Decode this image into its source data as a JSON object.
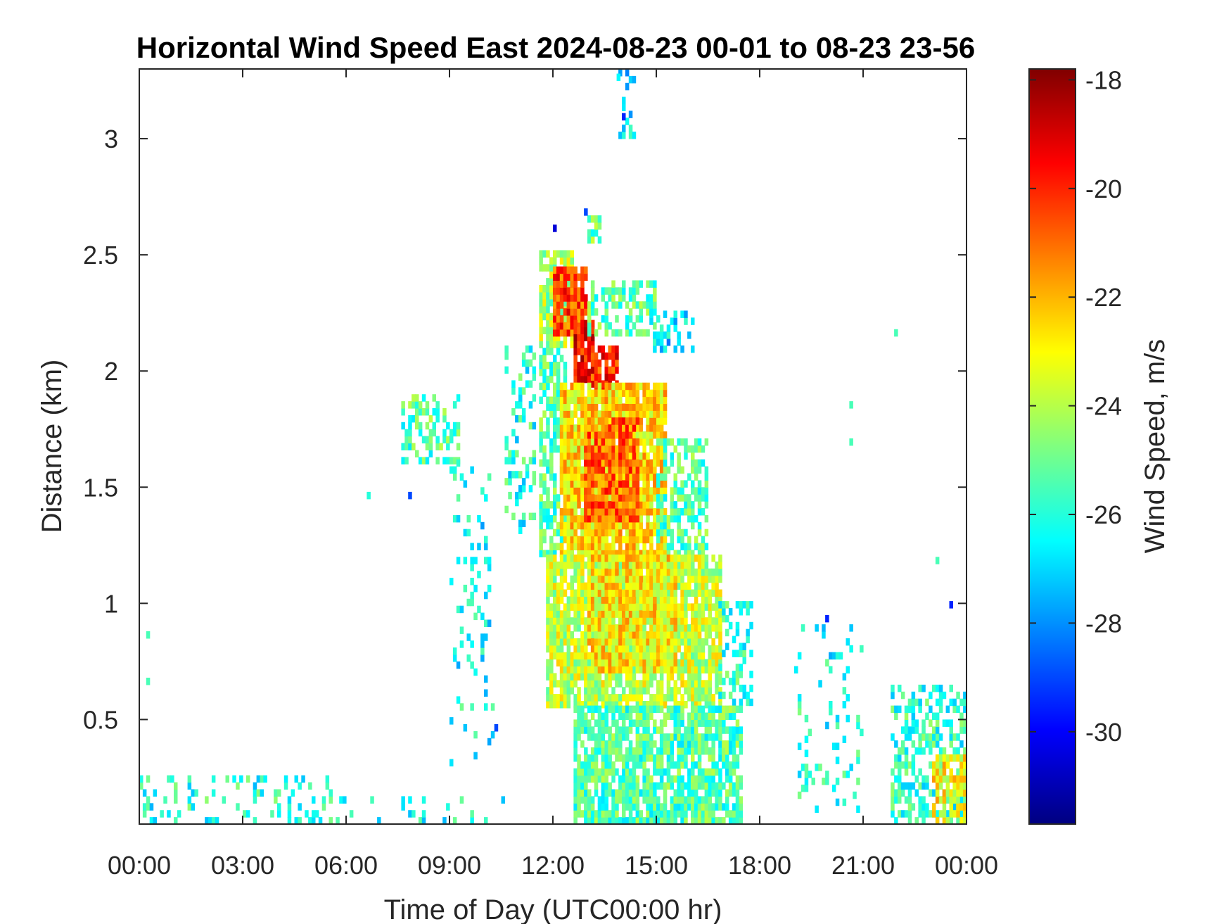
{
  "chart_data": {
    "type": "heatmap",
    "title": "Horizontal Wind Speed East 2024-08-23 00-01 to 08-23 23-56",
    "xlabel": "Time of Day (UTC00:00 hr)",
    "ylabel": "Distance (km)",
    "xlim": [
      0,
      24
    ],
    "ylim": [
      0.05,
      3.3
    ],
    "x_ticks": [
      {
        "value": 0,
        "label": "00:00"
      },
      {
        "value": 3,
        "label": "03:00"
      },
      {
        "value": 6,
        "label": "06:00"
      },
      {
        "value": 9,
        "label": "09:00"
      },
      {
        "value": 12,
        "label": "12:00"
      },
      {
        "value": 15,
        "label": "15:00"
      },
      {
        "value": 18,
        "label": "18:00"
      },
      {
        "value": 21,
        "label": "21:00"
      },
      {
        "value": 24,
        "label": "00:00"
      }
    ],
    "y_ticks": [
      {
        "value": 0.5,
        "label": "0.5"
      },
      {
        "value": 1,
        "label": "1"
      },
      {
        "value": 1.5,
        "label": "1.5"
      },
      {
        "value": 2,
        "label": "2"
      },
      {
        "value": 2.5,
        "label": "2.5"
      },
      {
        "value": 3,
        "label": "3"
      }
    ],
    "colorbar": {
      "label": "Wind Speed, m/s",
      "range": [
        -31.7,
        -17.8
      ],
      "colormap": "jet",
      "ticks": [
        {
          "value": -18,
          "label": "-18"
        },
        {
          "value": -20,
          "label": "-20"
        },
        {
          "value": -22,
          "label": "-22"
        },
        {
          "value": -24,
          "label": "-24"
        },
        {
          "value": -26,
          "label": "-26"
        },
        {
          "value": -28,
          "label": "-28"
        },
        {
          "value": -30,
          "label": "-30"
        }
      ]
    },
    "grid": false,
    "cell_size": {
      "time_hr": 0.1,
      "distance_km": 0.03
    },
    "regions": [
      {
        "t": [
          11.6,
          12.5
        ],
        "z": [
          2.1,
          2.5
        ],
        "v": -24.2,
        "density": 0.8
      },
      {
        "t": [
          12.0,
          12.9
        ],
        "z": [
          2.15,
          2.42
        ],
        "v": -20.5,
        "density": 0.9
      },
      {
        "t": [
          12.6,
          13.1
        ],
        "z": [
          1.95,
          2.2
        ],
        "v": -19.5,
        "density": 0.9
      },
      {
        "t": [
          13.1,
          13.8
        ],
        "z": [
          1.9,
          2.1
        ],
        "v": -20.0,
        "density": 0.9
      },
      {
        "t": [
          13.0,
          15.0
        ],
        "z": [
          2.15,
          2.38
        ],
        "v": -25.2,
        "density": 0.45
      },
      {
        "t": [
          14.8,
          16.0
        ],
        "z": [
          2.08,
          2.25
        ],
        "v": -27.0,
        "density": 0.45
      },
      {
        "t": [
          13.0,
          13.3
        ],
        "z": [
          2.55,
          2.65
        ],
        "v": -25.0,
        "density": 0.7
      },
      {
        "t": [
          11.6,
          12.3
        ],
        "z": [
          1.2,
          2.1
        ],
        "v": -25.3,
        "density": 0.65
      },
      {
        "t": [
          12.2,
          15.2
        ],
        "z": [
          1.2,
          1.95
        ],
        "v": -22.6,
        "density": 0.9
      },
      {
        "t": [
          12.9,
          14.4
        ],
        "z": [
          1.35,
          1.8
        ],
        "v": -20.9,
        "density": 0.9
      },
      {
        "t": [
          15.0,
          16.5
        ],
        "z": [
          1.2,
          1.7
        ],
        "v": -25.4,
        "density": 0.55
      },
      {
        "t": [
          11.8,
          16.8
        ],
        "z": [
          0.55,
          1.2
        ],
        "v": -23.8,
        "density": 0.85
      },
      {
        "t": [
          13.0,
          15.5
        ],
        "z": [
          0.7,
          1.2
        ],
        "v": -22.8,
        "density": 0.85
      },
      {
        "t": [
          16.8,
          17.8
        ],
        "z": [
          0.5,
          1.0
        ],
        "v": -25.8,
        "density": 0.35
      },
      {
        "t": [
          12.6,
          17.5
        ],
        "z": [
          0.05,
          0.55
        ],
        "v": -25.4,
        "density": 0.8
      },
      {
        "t": [
          7.6,
          9.2
        ],
        "z": [
          1.6,
          1.9
        ],
        "v": -25.4,
        "density": 0.4
      },
      {
        "t": [
          9.0,
          10.2
        ],
        "z": [
          0.3,
          1.6
        ],
        "v": -26.4,
        "density": 0.12
      },
      {
        "t": [
          10.6,
          11.4
        ],
        "z": [
          1.3,
          2.1
        ],
        "v": -26.0,
        "density": 0.3
      },
      {
        "t": [
          0.0,
          5.5
        ],
        "z": [
          0.05,
          0.25
        ],
        "v": -26.0,
        "density": 0.22
      },
      {
        "t": [
          5.5,
          10.5
        ],
        "z": [
          0.05,
          0.15
        ],
        "v": -26.0,
        "density": 0.12
      },
      {
        "t": [
          19.0,
          21.0
        ],
        "z": [
          0.1,
          0.9
        ],
        "v": -26.2,
        "density": 0.14
      },
      {
        "t": [
          21.8,
          24.0
        ],
        "z": [
          0.05,
          0.65
        ],
        "v": -25.8,
        "density": 0.5
      },
      {
        "t": [
          23.0,
          24.0
        ],
        "z": [
          0.05,
          0.35
        ],
        "v": -23.0,
        "density": 0.7
      },
      {
        "t": [
          13.9,
          14.3
        ],
        "z": [
          3.0,
          3.28
        ],
        "v": -27.0,
        "density": 0.35
      }
    ],
    "points": [
      {
        "t": 14.0,
        "z": 3.08,
        "v": -29.5
      },
      {
        "t": 14.0,
        "z": 3.03,
        "v": -27.5
      },
      {
        "t": 13.85,
        "z": 3.25,
        "v": -26.5
      },
      {
        "t": 12.0,
        "z": 2.6,
        "v": -30.5
      },
      {
        "t": 12.9,
        "z": 2.67,
        "v": -29.0
      },
      {
        "t": 21.9,
        "z": 2.15,
        "v": -25.5
      },
      {
        "t": 6.6,
        "z": 1.45,
        "v": -26.0
      },
      {
        "t": 20.6,
        "z": 1.84,
        "v": -25.5
      },
      {
        "t": 20.6,
        "z": 1.68,
        "v": -25.5
      },
      {
        "t": 23.5,
        "z": 0.98,
        "v": -29.5
      },
      {
        "t": 23.1,
        "z": 1.17,
        "v": -25.5
      },
      {
        "t": 0.2,
        "z": 0.85,
        "v": -25.5
      },
      {
        "t": 0.2,
        "z": 0.65,
        "v": -25.5
      },
      {
        "t": 7.8,
        "z": 1.45,
        "v": -29.0
      },
      {
        "t": 10.3,
        "z": 0.45,
        "v": -29.0
      },
      {
        "t": 19.9,
        "z": 0.92,
        "v": -29.5
      }
    ]
  }
}
